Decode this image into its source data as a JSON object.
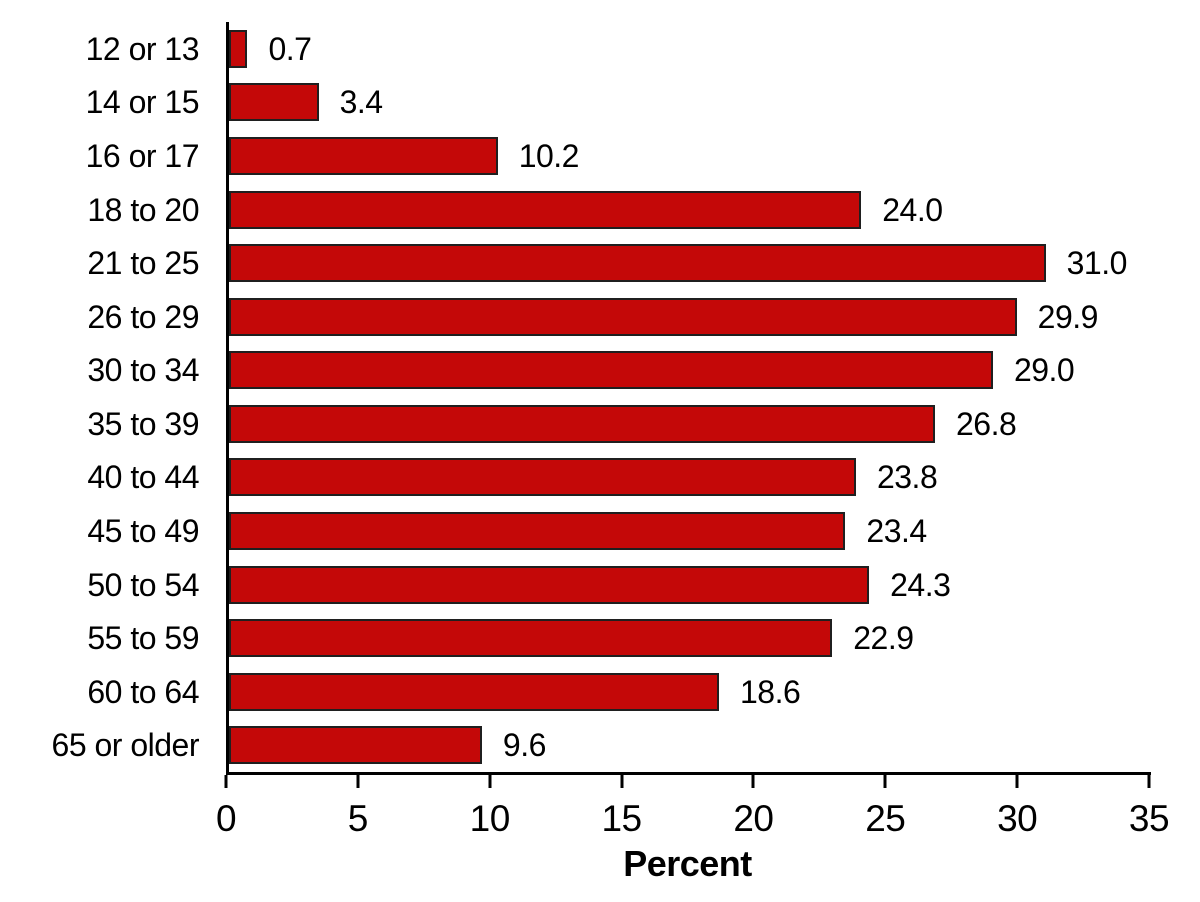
{
  "chart_data": {
    "type": "bar",
    "orientation": "horizontal",
    "categories": [
      "12 or 13",
      "14 or 15",
      "16 or 17",
      "18 to 20",
      "21 to 25",
      "26 to 29",
      "30 to 34",
      "35 to 39",
      "40 to 44",
      "45 to 49",
      "50 to 54",
      "55 to 59",
      "60 to 64",
      "65 or older"
    ],
    "values": [
      0.7,
      3.4,
      10.2,
      24.0,
      31.0,
      29.9,
      29.0,
      26.8,
      23.8,
      23.4,
      24.3,
      22.9,
      18.6,
      9.6
    ],
    "value_labels": [
      "0.7",
      "3.4",
      "10.2",
      "24.0",
      "31.0",
      "29.9",
      "29.0",
      "26.8",
      "23.8",
      "23.4",
      "24.3",
      "22.9",
      "18.6",
      "9.6"
    ],
    "title": "",
    "xlabel": "Percent",
    "ylabel": "",
    "xlim": [
      0,
      35
    ],
    "xticks": [
      0,
      5,
      10,
      15,
      20,
      25,
      30,
      35
    ],
    "xtick_labels": [
      "0",
      "5",
      "10",
      "15",
      "20",
      "25",
      "30",
      "35"
    ],
    "grid": false,
    "legend": false,
    "bar_color": "#c40808",
    "bar_border_color": "#1f1f1f",
    "axis_color": "#000000",
    "text_color": "#000000"
  }
}
